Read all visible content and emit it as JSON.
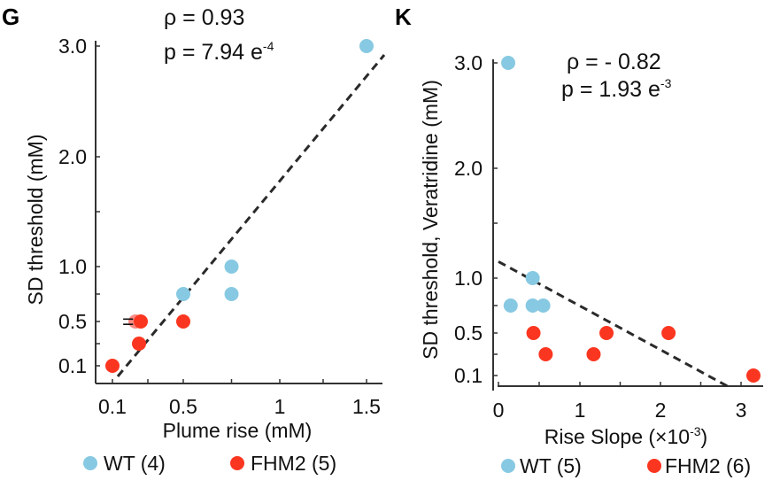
{
  "colors": {
    "wt": "#87c9e2",
    "fhm2": "#fb3620",
    "fhm2_faded": "#f98a83",
    "axis": "#333333",
    "fit": "#2a2a2a"
  },
  "chart_data": [
    {
      "type": "scatter",
      "panel": "G",
      "stats": {
        "rho": "ρ = 0.93",
        "p_prefix": "p = 7.94 e",
        "p_exp": "-4"
      },
      "xlabel": "Plume rise (mM)",
      "ylabel": "SD threshold (mM)",
      "xticks": [
        0.1,
        0.5,
        1,
        1.5
      ],
      "xtick_labels": [
        "0.1",
        "0.5",
        "1",
        "1.5"
      ],
      "yticks": [
        0.1,
        0.5,
        1.0,
        2.0,
        3.0
      ],
      "ytick_labels": [
        "0.1",
        "0.5",
        "1.0",
        "2.0",
        "3.0"
      ],
      "yminor": [
        0.3,
        0.75,
        1.5
      ],
      "xminor": [
        0.3,
        0.75,
        1.25
      ],
      "xlim": [
        0.0,
        1.6
      ],
      "ylim": [
        0.0,
        3.0
      ],
      "annotation": "=",
      "legend": [
        {
          "label": "WT (4)",
          "series": "wt"
        },
        {
          "label": "FHM2 (5)",
          "series": "fhm2"
        }
      ],
      "series": [
        {
          "name": "WT",
          "key": "wt",
          "points": [
            [
              1.5,
              3.0
            ],
            [
              0.75,
              1.0
            ],
            [
              0.75,
              0.75
            ],
            [
              0.5,
              0.75
            ]
          ]
        },
        {
          "name": "FHM2",
          "key": "fhm2",
          "points": [
            [
              0.1,
              0.1
            ],
            [
              0.25,
              0.3
            ],
            [
              0.23,
              0.5
            ],
            [
              0.26,
              0.5
            ],
            [
              0.5,
              0.5
            ]
          ],
          "faded_index": 2
        }
      ],
      "fit_line": {
        "x": [
          0.13,
          1.6
        ],
        "y": [
          0.0,
          2.92
        ]
      }
    },
    {
      "type": "scatter",
      "panel": "K",
      "stats": {
        "rho": "ρ = - 0.82",
        "p_prefix": "p = 1.93 e",
        "p_exp": "-3"
      },
      "xlabel_prefix": "Rise Slope (×10",
      "xlabel_exp": "-3",
      "xlabel_suffix": ")",
      "ylabel": "SD threshold, Veratridine (mM)",
      "xticks": [
        0,
        1,
        2,
        3
      ],
      "xtick_labels": [
        "0",
        "1",
        "2",
        "3"
      ],
      "xminor": [
        0.5,
        1.5,
        2.5
      ],
      "yticks": [
        0.1,
        0.5,
        1.0,
        2.0,
        3.0
      ],
      "ytick_labels": [
        "0.1",
        "0.5",
        "1.0",
        "2.0",
        "3.0"
      ],
      "yminor": [
        0.3,
        0.75,
        1.5
      ],
      "xlim": [
        0.0,
        3.3
      ],
      "ylim": [
        0.0,
        3.0
      ],
      "legend": [
        {
          "label": "WT (5)",
          "series": "wt"
        },
        {
          "label": "FHM2 (6)",
          "series": "fhm2"
        }
      ],
      "series": [
        {
          "name": "WT",
          "key": "wt",
          "points": [
            [
              0.12,
              3.0
            ],
            [
              0.42,
              1.0
            ],
            [
              0.15,
              0.75
            ],
            [
              0.42,
              0.75
            ],
            [
              0.55,
              0.75
            ]
          ]
        },
        {
          "name": "FHM2",
          "key": "fhm2",
          "points": [
            [
              0.43,
              0.5
            ],
            [
              0.58,
              0.3
            ],
            [
              1.17,
              0.3
            ],
            [
              1.33,
              0.5
            ],
            [
              2.1,
              0.5
            ],
            [
              3.15,
              0.1
            ]
          ]
        }
      ],
      "fit_line": {
        "x": [
          0.0,
          2.83
        ],
        "y": [
          1.15,
          0.0
        ]
      }
    }
  ]
}
